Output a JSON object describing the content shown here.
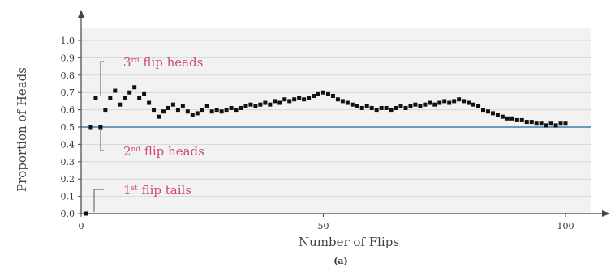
{
  "chart_data": {
    "type": "scatter",
    "title": "",
    "xlabel": "Number of Flips",
    "ylabel": "Proportion of Heads",
    "caption": "(a)",
    "xlim": [
      0,
      105
    ],
    "ylim": [
      0,
      1.0
    ],
    "x_ticks": [
      0,
      50,
      100
    ],
    "y_ticks": [
      "0.0",
      "0.1",
      "0.2",
      "0.3",
      "0.4",
      "0.5",
      "0.6",
      "0.7",
      "0.8",
      "0.9",
      "1.0"
    ],
    "grid": true,
    "reference_line": 0.5,
    "annotations": [
      {
        "text_main": "3",
        "text_sup": "rd",
        "text_rest": " flip heads",
        "x": 3,
        "y": 0.667
      },
      {
        "text_main": "2",
        "text_sup": "nd",
        "text_rest": " flip heads",
        "x": 2,
        "y": 0.5
      },
      {
        "text_main": "1",
        "text_sup": "st",
        "text_rest": " flip tails",
        "x": 1,
        "y": 0.0
      }
    ],
    "colors": {
      "points": "#111111",
      "reference_line": "#3b7fa5",
      "grid": "#d6d6d6",
      "plot_bg": "#f2f2f2",
      "annotation": "#d0467d"
    },
    "x": [
      1,
      2,
      3,
      4,
      5,
      6,
      7,
      8,
      9,
      10,
      11,
      12,
      13,
      14,
      15,
      16,
      17,
      18,
      19,
      20,
      21,
      22,
      23,
      24,
      25,
      26,
      27,
      28,
      29,
      30,
      31,
      32,
      33,
      34,
      35,
      36,
      37,
      38,
      39,
      40,
      41,
      42,
      43,
      44,
      45,
      46,
      47,
      48,
      49,
      50,
      51,
      52,
      53,
      54,
      55,
      56,
      57,
      58,
      59,
      60,
      61,
      62,
      63,
      64,
      65,
      66,
      67,
      68,
      69,
      70,
      71,
      72,
      73,
      74,
      75,
      76,
      77,
      78,
      79,
      80,
      81,
      82,
      83,
      84,
      85,
      86,
      87,
      88,
      89,
      90,
      91,
      92,
      93,
      94,
      95,
      96,
      97,
      98,
      99,
      100
    ],
    "y": [
      0.0,
      0.5,
      0.67,
      0.5,
      0.6,
      0.67,
      0.71,
      0.63,
      0.67,
      0.7,
      0.73,
      0.67,
      0.69,
      0.64,
      0.6,
      0.56,
      0.59,
      0.61,
      0.63,
      0.6,
      0.62,
      0.59,
      0.57,
      0.58,
      0.6,
      0.62,
      0.59,
      0.6,
      0.59,
      0.6,
      0.61,
      0.6,
      0.61,
      0.62,
      0.63,
      0.62,
      0.63,
      0.64,
      0.63,
      0.65,
      0.64,
      0.66,
      0.65,
      0.66,
      0.67,
      0.66,
      0.67,
      0.68,
      0.69,
      0.7,
      0.69,
      0.68,
      0.66,
      0.65,
      0.64,
      0.63,
      0.62,
      0.61,
      0.62,
      0.61,
      0.6,
      0.61,
      0.61,
      0.6,
      0.61,
      0.62,
      0.61,
      0.62,
      0.63,
      0.62,
      0.63,
      0.64,
      0.63,
      0.64,
      0.65,
      0.64,
      0.65,
      0.66,
      0.65,
      0.64,
      0.63,
      0.62,
      0.6,
      0.59,
      0.58,
      0.57,
      0.56,
      0.55,
      0.55,
      0.54,
      0.54,
      0.53,
      0.53,
      0.52,
      0.52,
      0.51,
      0.52,
      0.51,
      0.52,
      0.52
    ]
  }
}
